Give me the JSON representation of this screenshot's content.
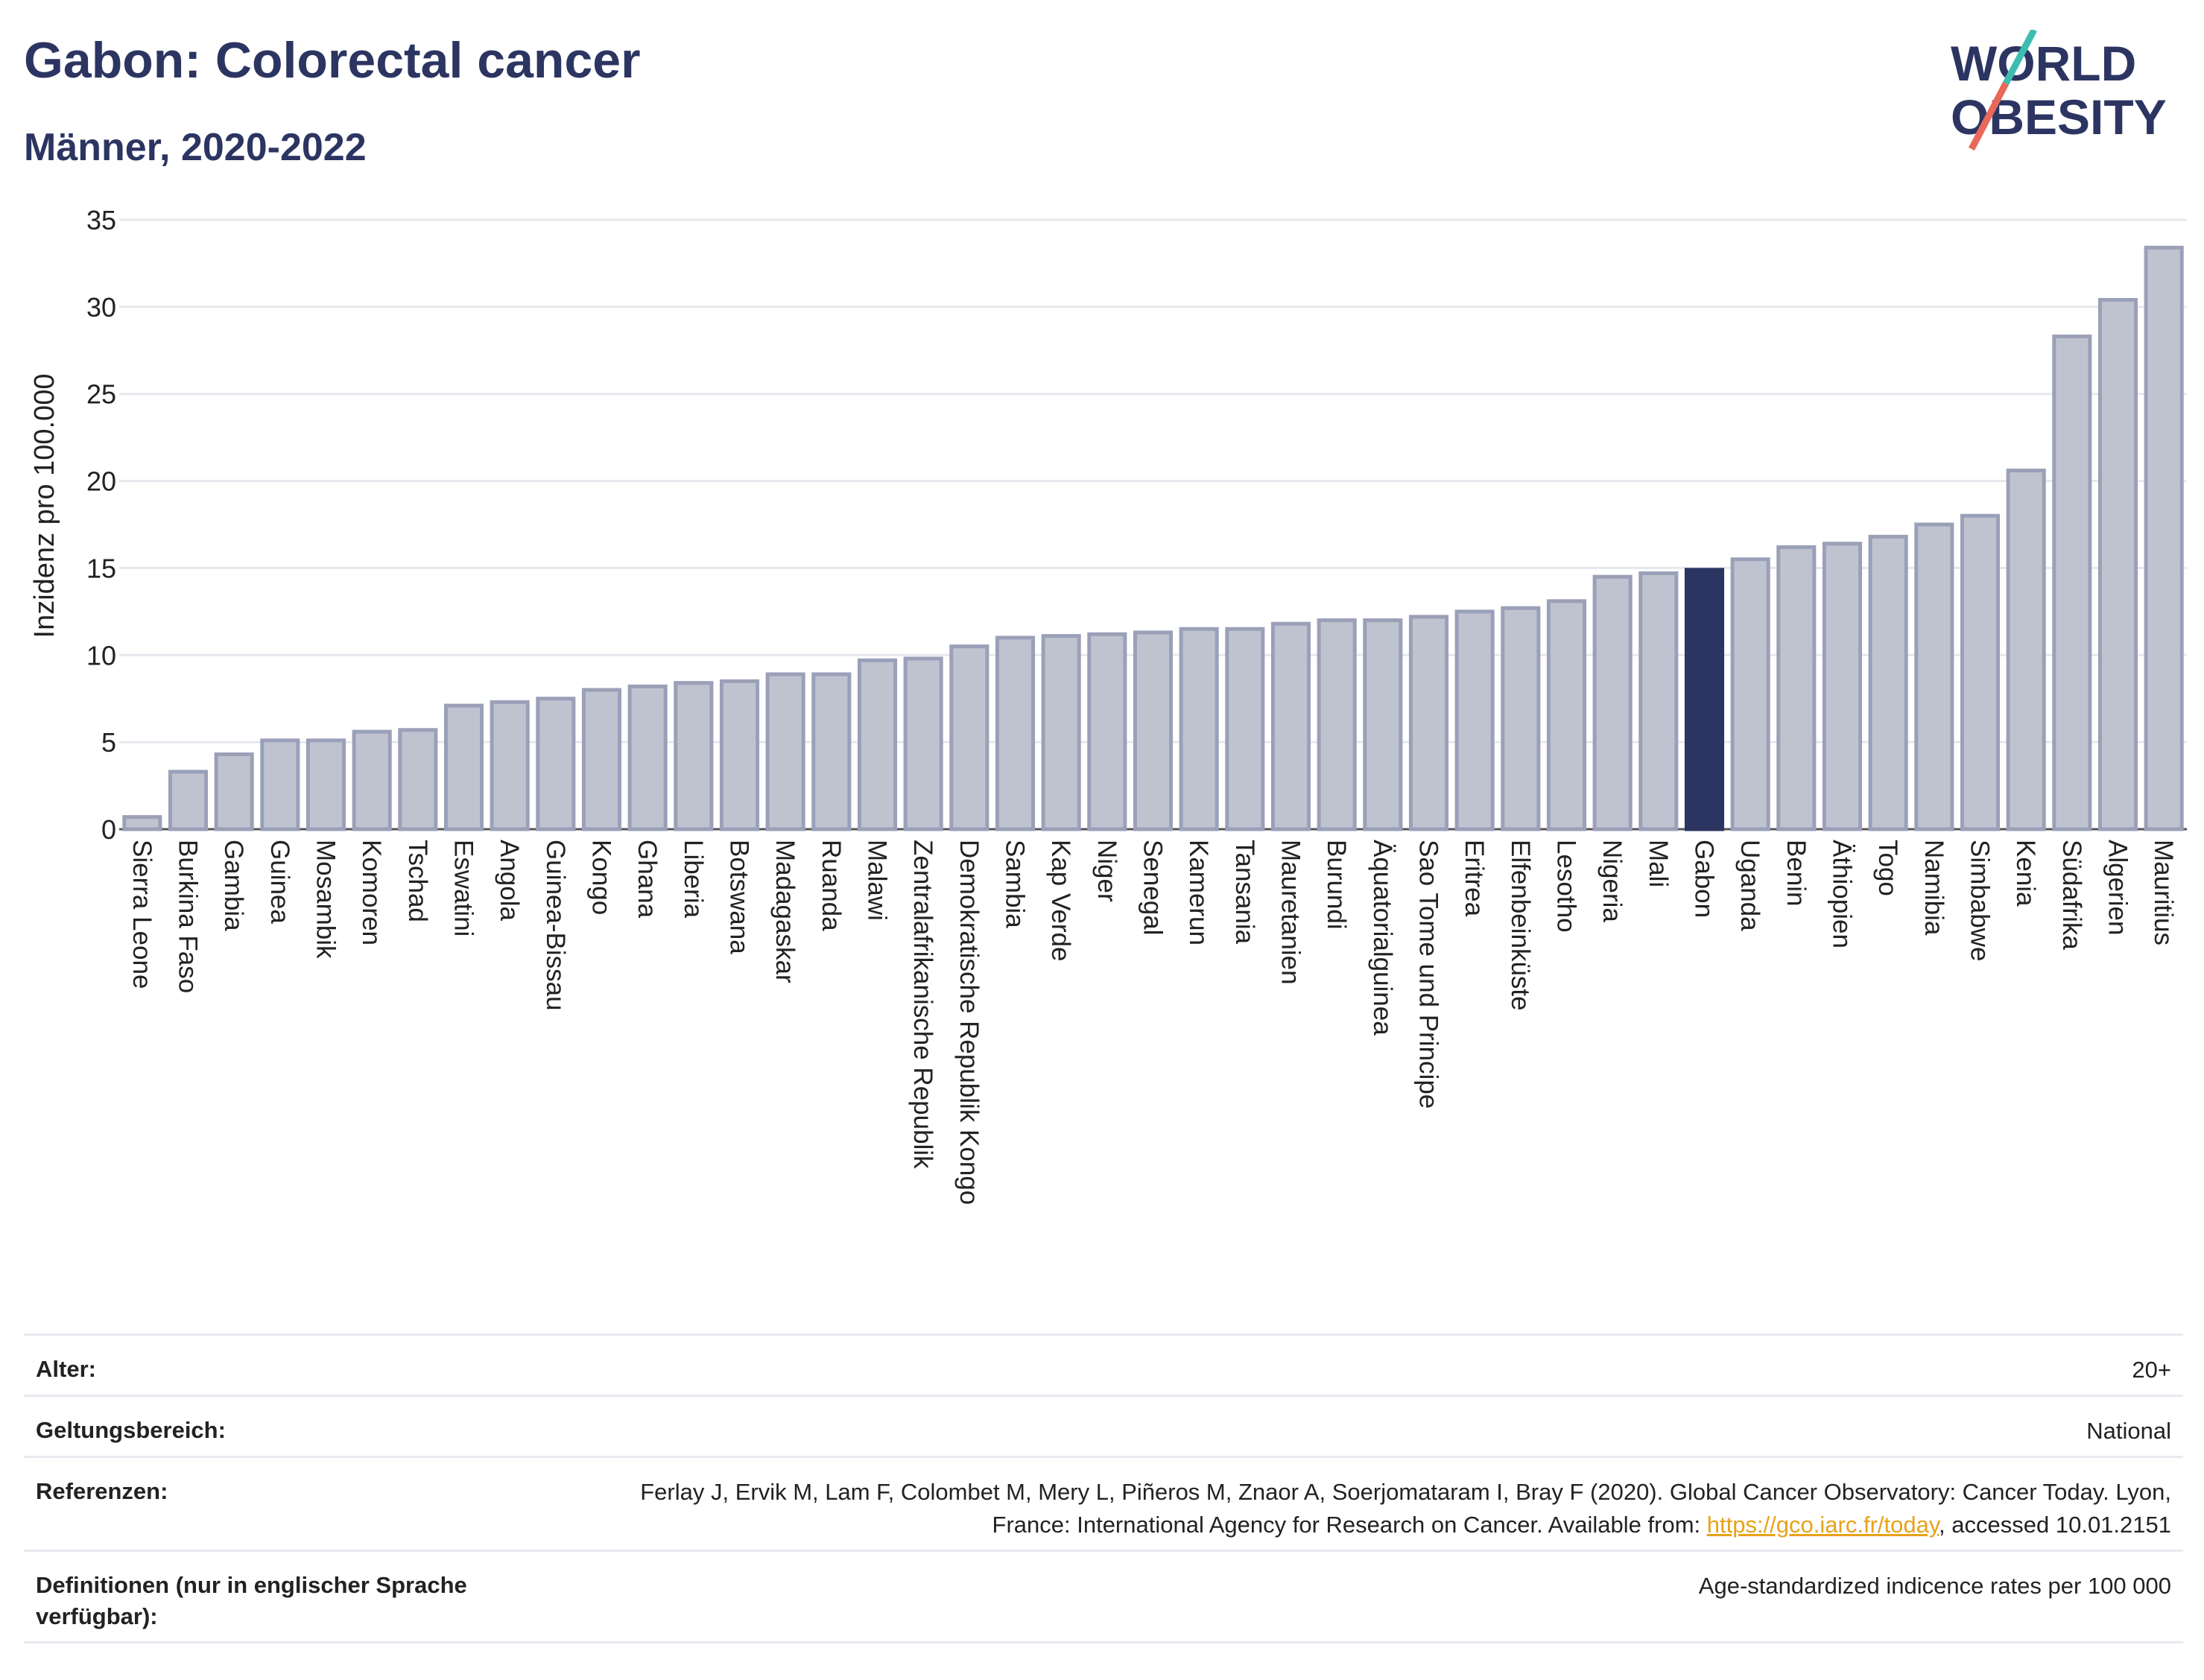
{
  "title": "Gabon: Colorectal cancer",
  "subtitle": "Männer, 2020-2022",
  "logo": {
    "line1": "WORLD",
    "line2": "OBESITY"
  },
  "colors": {
    "bar": "#bfc3d0",
    "bar_stroke": "#9aa0b8",
    "highlight": "#2c3561",
    "grid": "#e6e8ee"
  },
  "chart_data": {
    "type": "bar",
    "ylabel": "Inzidenz pro 100.000",
    "xlabel": "",
    "ylim": [
      0,
      35
    ],
    "yticks": [
      0,
      5,
      10,
      15,
      20,
      25,
      30,
      35
    ],
    "grid": true,
    "highlight": "Gabon",
    "categories": [
      "Sierra Leone",
      "Burkina Faso",
      "Gambia",
      "Guinea",
      "Mosambik",
      "Komoren",
      "Tschad",
      "Eswatini",
      "Angola",
      "Guinea-Bissau",
      "Kongo",
      "Ghana",
      "Liberia",
      "Botswana",
      "Madagaskar",
      "Ruanda",
      "Malawi",
      "Zentralafrikanische Republik",
      "Demokratische Republik Kongo",
      "Sambia",
      "Kap Verde",
      "Niger",
      "Senegal",
      "Kamerun",
      "Tansania",
      "Mauretanien",
      "Burundi",
      "Äquatorialguinea",
      "Sao Tome und Principe",
      "Eritrea",
      "Elfenbeinküste",
      "Lesotho",
      "Nigeria",
      "Mali",
      "Gabon",
      "Uganda",
      "Benin",
      "Äthiopien",
      "Togo",
      "Namibia",
      "Simbabwe",
      "Kenia",
      "Südafrika",
      "Algerien",
      "Mauritius"
    ],
    "values": [
      0.7,
      3.3,
      4.3,
      5.1,
      5.1,
      5.6,
      5.7,
      7.1,
      7.3,
      7.5,
      8.0,
      8.2,
      8.4,
      8.5,
      8.9,
      8.9,
      9.7,
      9.8,
      10.5,
      11.0,
      11.1,
      11.2,
      11.3,
      11.5,
      11.5,
      11.8,
      12.0,
      12.0,
      12.2,
      12.5,
      12.7,
      13.1,
      14.5,
      14.7,
      14.9,
      15.5,
      16.2,
      16.4,
      16.8,
      17.5,
      18.0,
      20.6,
      28.3,
      30.4,
      33.4
    ]
  },
  "meta": {
    "age_label": "Alter:",
    "age_value": "20+",
    "scope_label": "Geltungsbereich:",
    "scope_value": "National",
    "ref_label": "Referenzen:",
    "ref_text_1": "Ferlay J, Ervik M, Lam F, Colombet M, Mery L, Piñeros M, Znaor A, Soerjomataram I, Bray F (2020). Global Cancer Observatory: Cancer Today. Lyon, France: International Agency for Research on Cancer. Available from: ",
    "ref_link": "https://gco.iarc.fr/today",
    "ref_text_2": ", accessed 10.01.2151",
    "def_label": "Definitionen (nur in englischer Sprache verfügbar):",
    "def_value": "Age-standardized indicence rates per 100 000"
  }
}
